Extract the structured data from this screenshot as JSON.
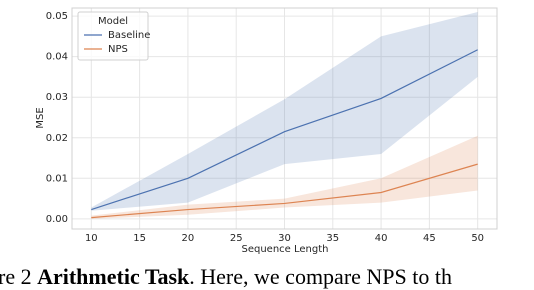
{
  "chart_data": {
    "type": "line",
    "x_label": "Sequence Length",
    "y_label": "MSE",
    "x": [
      10,
      20,
      30,
      40,
      50
    ],
    "series": [
      {
        "name": "Baseline",
        "color": "#4c72b0",
        "values": [
          0.0023,
          0.01,
          0.0215,
          0.0297,
          0.0417
        ],
        "lower": [
          0.002,
          0.004,
          0.0135,
          0.016,
          0.035
        ],
        "upper": [
          0.0028,
          0.016,
          0.0295,
          0.045,
          0.051
        ]
      },
      {
        "name": "NPS",
        "color": "#dd8452",
        "values": [
          0.0003,
          0.0023,
          0.0038,
          0.0065,
          0.0135
        ],
        "lower": [
          0.0,
          0.001,
          0.0028,
          0.004,
          0.007
        ],
        "upper": [
          0.0008,
          0.0035,
          0.005,
          0.01,
          0.0205
        ]
      }
    ],
    "legend_title": "Model",
    "legend": "upper-left",
    "grid": true,
    "xlim": [
      8,
      52
    ],
    "xticks": [
      10,
      15,
      20,
      25,
      30,
      35,
      40,
      45,
      50
    ],
    "ylim": [
      -0.0025,
      0.052
    ],
    "yticks": [
      {
        "value": 0,
        "label": "0.00"
      },
      0.01,
      0.02,
      0.03,
      0.04,
      0.05
    ]
  },
  "caption": {
    "start": "re 2 ",
    "bold": "Arithmetic Task",
    "rest": ". Here, we compare NPS to th"
  }
}
